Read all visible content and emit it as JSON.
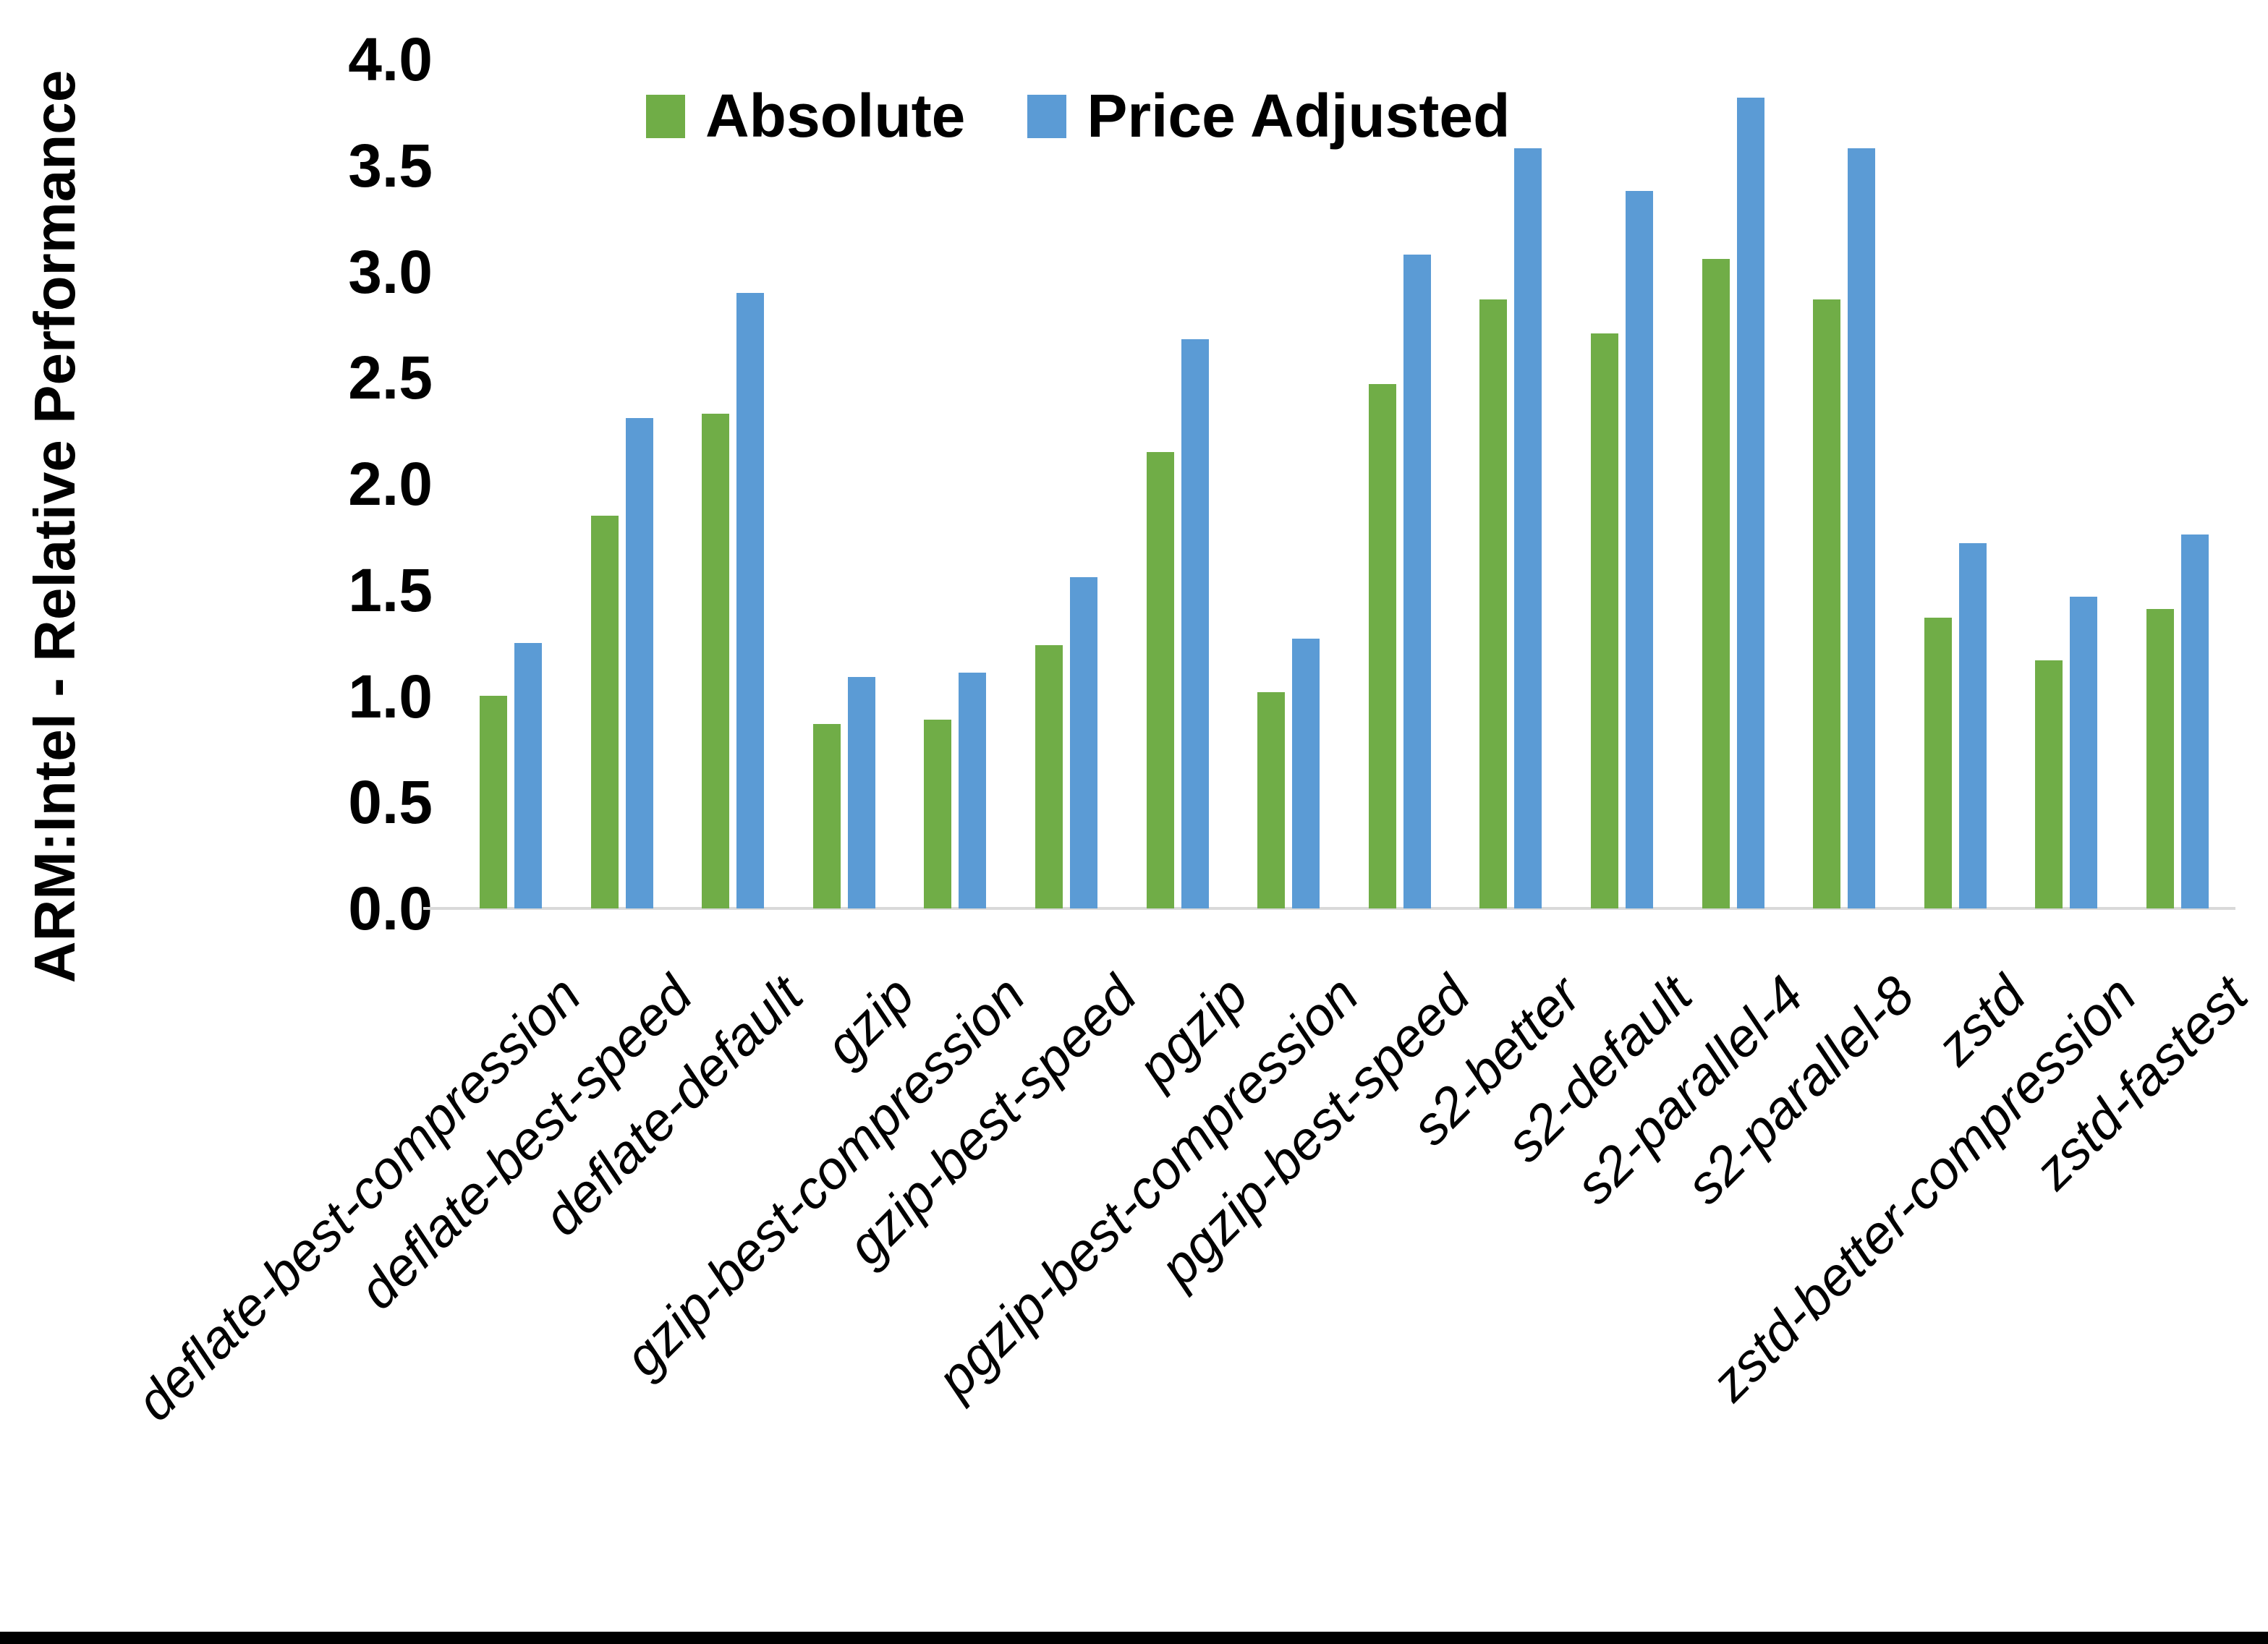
{
  "page": {
    "background": "#ffffff",
    "bottom_border_color": "#000000"
  },
  "chart_data": {
    "type": "bar",
    "title": "",
    "xlabel": "",
    "ylabel": "ARM:Intel - Relative Performance",
    "categories": [
      "deflate-best-compression",
      "deflate-best-speed",
      "deflate-default",
      "gzip",
      "gzip-best-compression",
      "gzip-best-speed",
      "pgzip",
      "pgzip-best-compression",
      "pgzip-best-speed",
      "s2-better",
      "s2-default",
      "s2-parallel-4",
      "s2-parallel-8",
      "zstd",
      "zstd-better-compression",
      "zstd-fastest"
    ],
    "series": [
      {
        "name": "Absolute",
        "color": "#70AD47",
        "values": [
          1.0,
          1.85,
          2.33,
          0.87,
          0.89,
          1.24,
          2.15,
          1.02,
          2.47,
          2.87,
          2.71,
          3.06,
          2.87,
          1.37,
          1.17,
          1.41
        ]
      },
      {
        "name": "Price Adjusted",
        "color": "#5B9BD5",
        "values": [
          1.25,
          2.31,
          2.9,
          1.09,
          1.11,
          1.56,
          2.68,
          1.27,
          3.08,
          3.58,
          3.38,
          3.82,
          3.58,
          1.72,
          1.47,
          1.76
        ]
      }
    ],
    "ylim": [
      0.0,
      4.0
    ],
    "ytick_step": 0.5,
    "yticks": [
      "0.0",
      "0.5",
      "1.0",
      "1.5",
      "2.0",
      "2.5",
      "3.0",
      "3.5",
      "4.0"
    ],
    "grid": false,
    "legend_position": "top",
    "axis_line_color": "#D9D9D9",
    "text_color": "#000000"
  }
}
